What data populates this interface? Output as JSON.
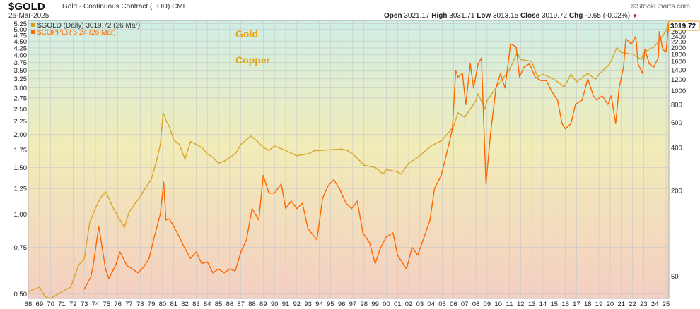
{
  "header": {
    "symbol": "$GOLD",
    "description": "Gold - Continuous Contract (EOD)",
    "exchange": "CME",
    "date": "26-Mar-2025",
    "brand": "©StockCharts.com",
    "ohlc": {
      "open_label": "Open",
      "open": "3021.17",
      "high_label": "High",
      "high": "3031.71",
      "low_label": "Low",
      "low": "3013.15",
      "close_label": "Close",
      "close": "3019.72",
      "chg_label": "Chg",
      "chg": "-0.65 (-0.02%)",
      "chg_marker": "▼"
    }
  },
  "legend": [
    {
      "text": "$GOLD (Daily) 3019.72 (26 Mar)",
      "color": "#d4a017"
    },
    {
      "text": "$COPPER 5.24 (26 Mar)",
      "color": "#ff6a00"
    }
  ],
  "annotations": {
    "gold": "Gold",
    "copper": "Copper"
  },
  "last_value_label": "3019.72",
  "colors": {
    "gold": "#d9a52a",
    "copper": "#ff6600",
    "grid": "#c8c8c8",
    "bg_top": "#cfeee6",
    "bg_mid": "#f1ecb8",
    "bg_bottom": "#f4cfc2",
    "annotation": "#e8a317"
  },
  "chart_data": {
    "type": "line",
    "title": "$GOLD Gold - Continuous Contract (EOD) vs $COPPER",
    "x_label": "",
    "x_ticks": [
      "68",
      "69",
      "70",
      "71",
      "72",
      "73",
      "74",
      "75",
      "76",
      "77",
      "78",
      "79",
      "80",
      "81",
      "82",
      "83",
      "84",
      "85",
      "86",
      "87",
      "88",
      "89",
      "90",
      "91",
      "92",
      "93",
      "94",
      "95",
      "96",
      "97",
      "98",
      "99",
      "00",
      "01",
      "02",
      "03",
      "04",
      "05",
      "06",
      "07",
      "08",
      "09",
      "10",
      "11",
      "12",
      "13",
      "14",
      "15",
      "16",
      "17",
      "18",
      "19",
      "20",
      "21",
      "22",
      "23",
      "24",
      "25"
    ],
    "x_range": [
      1968.0,
      2025.25
    ],
    "y_scale": "log",
    "left_axis": {
      "series": "$COPPER",
      "ticks": [
        "0.50",
        "0.75",
        "1.00",
        "1.25",
        "1.50",
        "1.75",
        "2.00",
        "2.25",
        "2.50",
        "2.75",
        "3.00",
        "3.25",
        "3.50",
        "3.75",
        "4.00",
        "4.25",
        "4.50",
        "4.75",
        "5.00",
        "5.25"
      ],
      "range": [
        0.48,
        5.4
      ]
    },
    "right_axis": {
      "series": "$GOLD",
      "ticks": [
        "50",
        "200",
        "400",
        "600",
        "800",
        "1000",
        "1200",
        "1400",
        "1600",
        "1800",
        "2000",
        "2200",
        "2400",
        "2600",
        "2800"
      ],
      "range": [
        35,
        3100
      ]
    },
    "series": [
      {
        "name": "$GOLD",
        "axis": "right",
        "x": [
          1968.0,
          1969.0,
          1969.5,
          1970.0,
          1970.5,
          1971.0,
          1971.8,
          1972.5,
          1973.0,
          1973.5,
          1974.0,
          1974.5,
          1974.95,
          1975.5,
          1976.0,
          1976.6,
          1977.0,
          1977.5,
          1978.0,
          1978.5,
          1979.0,
          1979.5,
          1979.8,
          1980.05,
          1980.3,
          1980.6,
          1981.0,
          1981.5,
          1982.0,
          1982.5,
          1983.0,
          1983.5,
          1984.0,
          1984.5,
          1985.0,
          1985.5,
          1986.0,
          1986.5,
          1987.0,
          1987.9,
          1988.5,
          1989.0,
          1989.5,
          1990.0,
          1991.0,
          1992.0,
          1993.0,
          1993.6,
          1994.0,
          1995.0,
          1996.0,
          1996.5,
          1997.0,
          1997.5,
          1998.0,
          1999.0,
          1999.7,
          2000.0,
          2001.0,
          2001.3,
          2002.0,
          2003.0,
          2004.0,
          2005.0,
          2006.0,
          2006.4,
          2007.0,
          2008.0,
          2008.2,
          2008.8,
          2009.0,
          2010.0,
          2011.0,
          2011.7,
          2012.0,
          2013.0,
          2013.5,
          2014.0,
          2015.0,
          2015.9,
          2016.5,
          2017.0,
          2018.0,
          2018.7,
          2019.0,
          2019.5,
          2020.0,
          2020.6,
          2021.0,
          2022.0,
          2022.8,
          2023.0,
          2024.0,
          2024.5,
          2025.0,
          2025.23
        ],
        "values": [
          39,
          42,
          36,
          35,
          37,
          39,
          42,
          60,
          66,
          120,
          150,
          180,
          195,
          155,
          132,
          110,
          140,
          160,
          180,
          210,
          240,
          330,
          420,
          700,
          620,
          560,
          450,
          420,
          330,
          440,
          420,
          400,
          360,
          340,
          310,
          320,
          340,
          360,
          420,
          480,
          440,
          400,
          380,
          410,
          380,
          350,
          360,
          380,
          380,
          385,
          390,
          380,
          360,
          330,
          300,
          290,
          260,
          280,
          270,
          260,
          310,
          350,
          410,
          450,
          560,
          700,
          650,
          850,
          950,
          740,
          850,
          1100,
          1400,
          1850,
          1650,
          1600,
          1250,
          1300,
          1200,
          1060,
          1300,
          1150,
          1320,
          1200,
          1300,
          1420,
          1550,
          2000,
          1850,
          1800,
          1650,
          1850,
          2050,
          2300,
          2630,
          3019.72
        ]
      },
      {
        "name": "$COPPER",
        "axis": "left",
        "x": [
          1973.0,
          1973.6,
          1973.8,
          1974.3,
          1974.6,
          1974.9,
          1975.2,
          1975.8,
          1976.2,
          1976.8,
          1977.3,
          1977.8,
          1978.3,
          1978.8,
          1979.2,
          1979.8,
          1980.1,
          1980.3,
          1980.6,
          1981.0,
          1981.5,
          1982.0,
          1982.5,
          1983.0,
          1983.5,
          1984.0,
          1984.5,
          1985.0,
          1985.5,
          1986.0,
          1986.5,
          1987.0,
          1987.5,
          1988.0,
          1988.6,
          1989.0,
          1989.5,
          1990.0,
          1990.6,
          1991.0,
          1991.5,
          1992.0,
          1992.5,
          1993.0,
          1993.8,
          1994.3,
          1994.8,
          1995.3,
          1995.8,
          1996.4,
          1996.9,
          1997.4,
          1997.9,
          1998.5,
          1999.0,
          1999.5,
          2000.0,
          2000.6,
          2001.0,
          2001.8,
          2002.3,
          2002.8,
          2003.3,
          2003.9,
          2004.3,
          2004.9,
          2005.4,
          2005.9,
          2006.2,
          2006.4,
          2006.8,
          2007.1,
          2007.5,
          2007.8,
          2008.2,
          2008.5,
          2008.9,
          2009.3,
          2009.8,
          2010.2,
          2010.6,
          2011.1,
          2011.6,
          2011.9,
          2012.3,
          2012.8,
          2013.3,
          2013.8,
          2014.3,
          2014.8,
          2015.3,
          2015.7,
          2016.0,
          2016.5,
          2016.9,
          2017.5,
          2018.0,
          2018.5,
          2018.8,
          2019.3,
          2019.8,
          2020.1,
          2020.5,
          2020.8,
          2021.2,
          2021.4,
          2021.9,
          2022.3,
          2022.5,
          2022.9,
          2023.1,
          2023.5,
          2023.9,
          2024.3,
          2024.4,
          2024.7,
          2025.0,
          2025.23
        ],
        "values": [
          0.52,
          0.58,
          0.64,
          0.9,
          0.75,
          0.62,
          0.57,
          0.64,
          0.72,
          0.64,
          0.62,
          0.6,
          0.63,
          0.68,
          0.8,
          1.0,
          1.32,
          0.95,
          0.96,
          0.9,
          0.82,
          0.74,
          0.68,
          0.72,
          0.65,
          0.66,
          0.6,
          0.62,
          0.6,
          0.62,
          0.61,
          0.72,
          0.8,
          1.05,
          0.95,
          1.4,
          1.2,
          1.2,
          1.3,
          1.05,
          1.12,
          1.05,
          1.1,
          0.88,
          0.8,
          1.15,
          1.28,
          1.35,
          1.25,
          1.1,
          1.05,
          1.12,
          0.85,
          0.78,
          0.65,
          0.75,
          0.82,
          0.85,
          0.7,
          0.62,
          0.75,
          0.7,
          0.8,
          0.95,
          1.25,
          1.4,
          1.7,
          2.1,
          3.5,
          3.3,
          3.4,
          2.6,
          3.7,
          3.0,
          3.7,
          3.9,
          1.3,
          2.0,
          3.0,
          3.4,
          3.0,
          4.4,
          4.3,
          3.3,
          3.6,
          3.7,
          3.3,
          3.2,
          3.2,
          2.9,
          2.7,
          2.2,
          2.1,
          2.2,
          2.6,
          2.7,
          3.25,
          2.8,
          2.7,
          2.8,
          2.6,
          2.8,
          2.2,
          3.0,
          3.6,
          4.6,
          4.4,
          4.7,
          3.7,
          3.4,
          4.2,
          3.7,
          3.6,
          3.9,
          4.9,
          4.2,
          4.1,
          5.24
        ]
      }
    ]
  }
}
